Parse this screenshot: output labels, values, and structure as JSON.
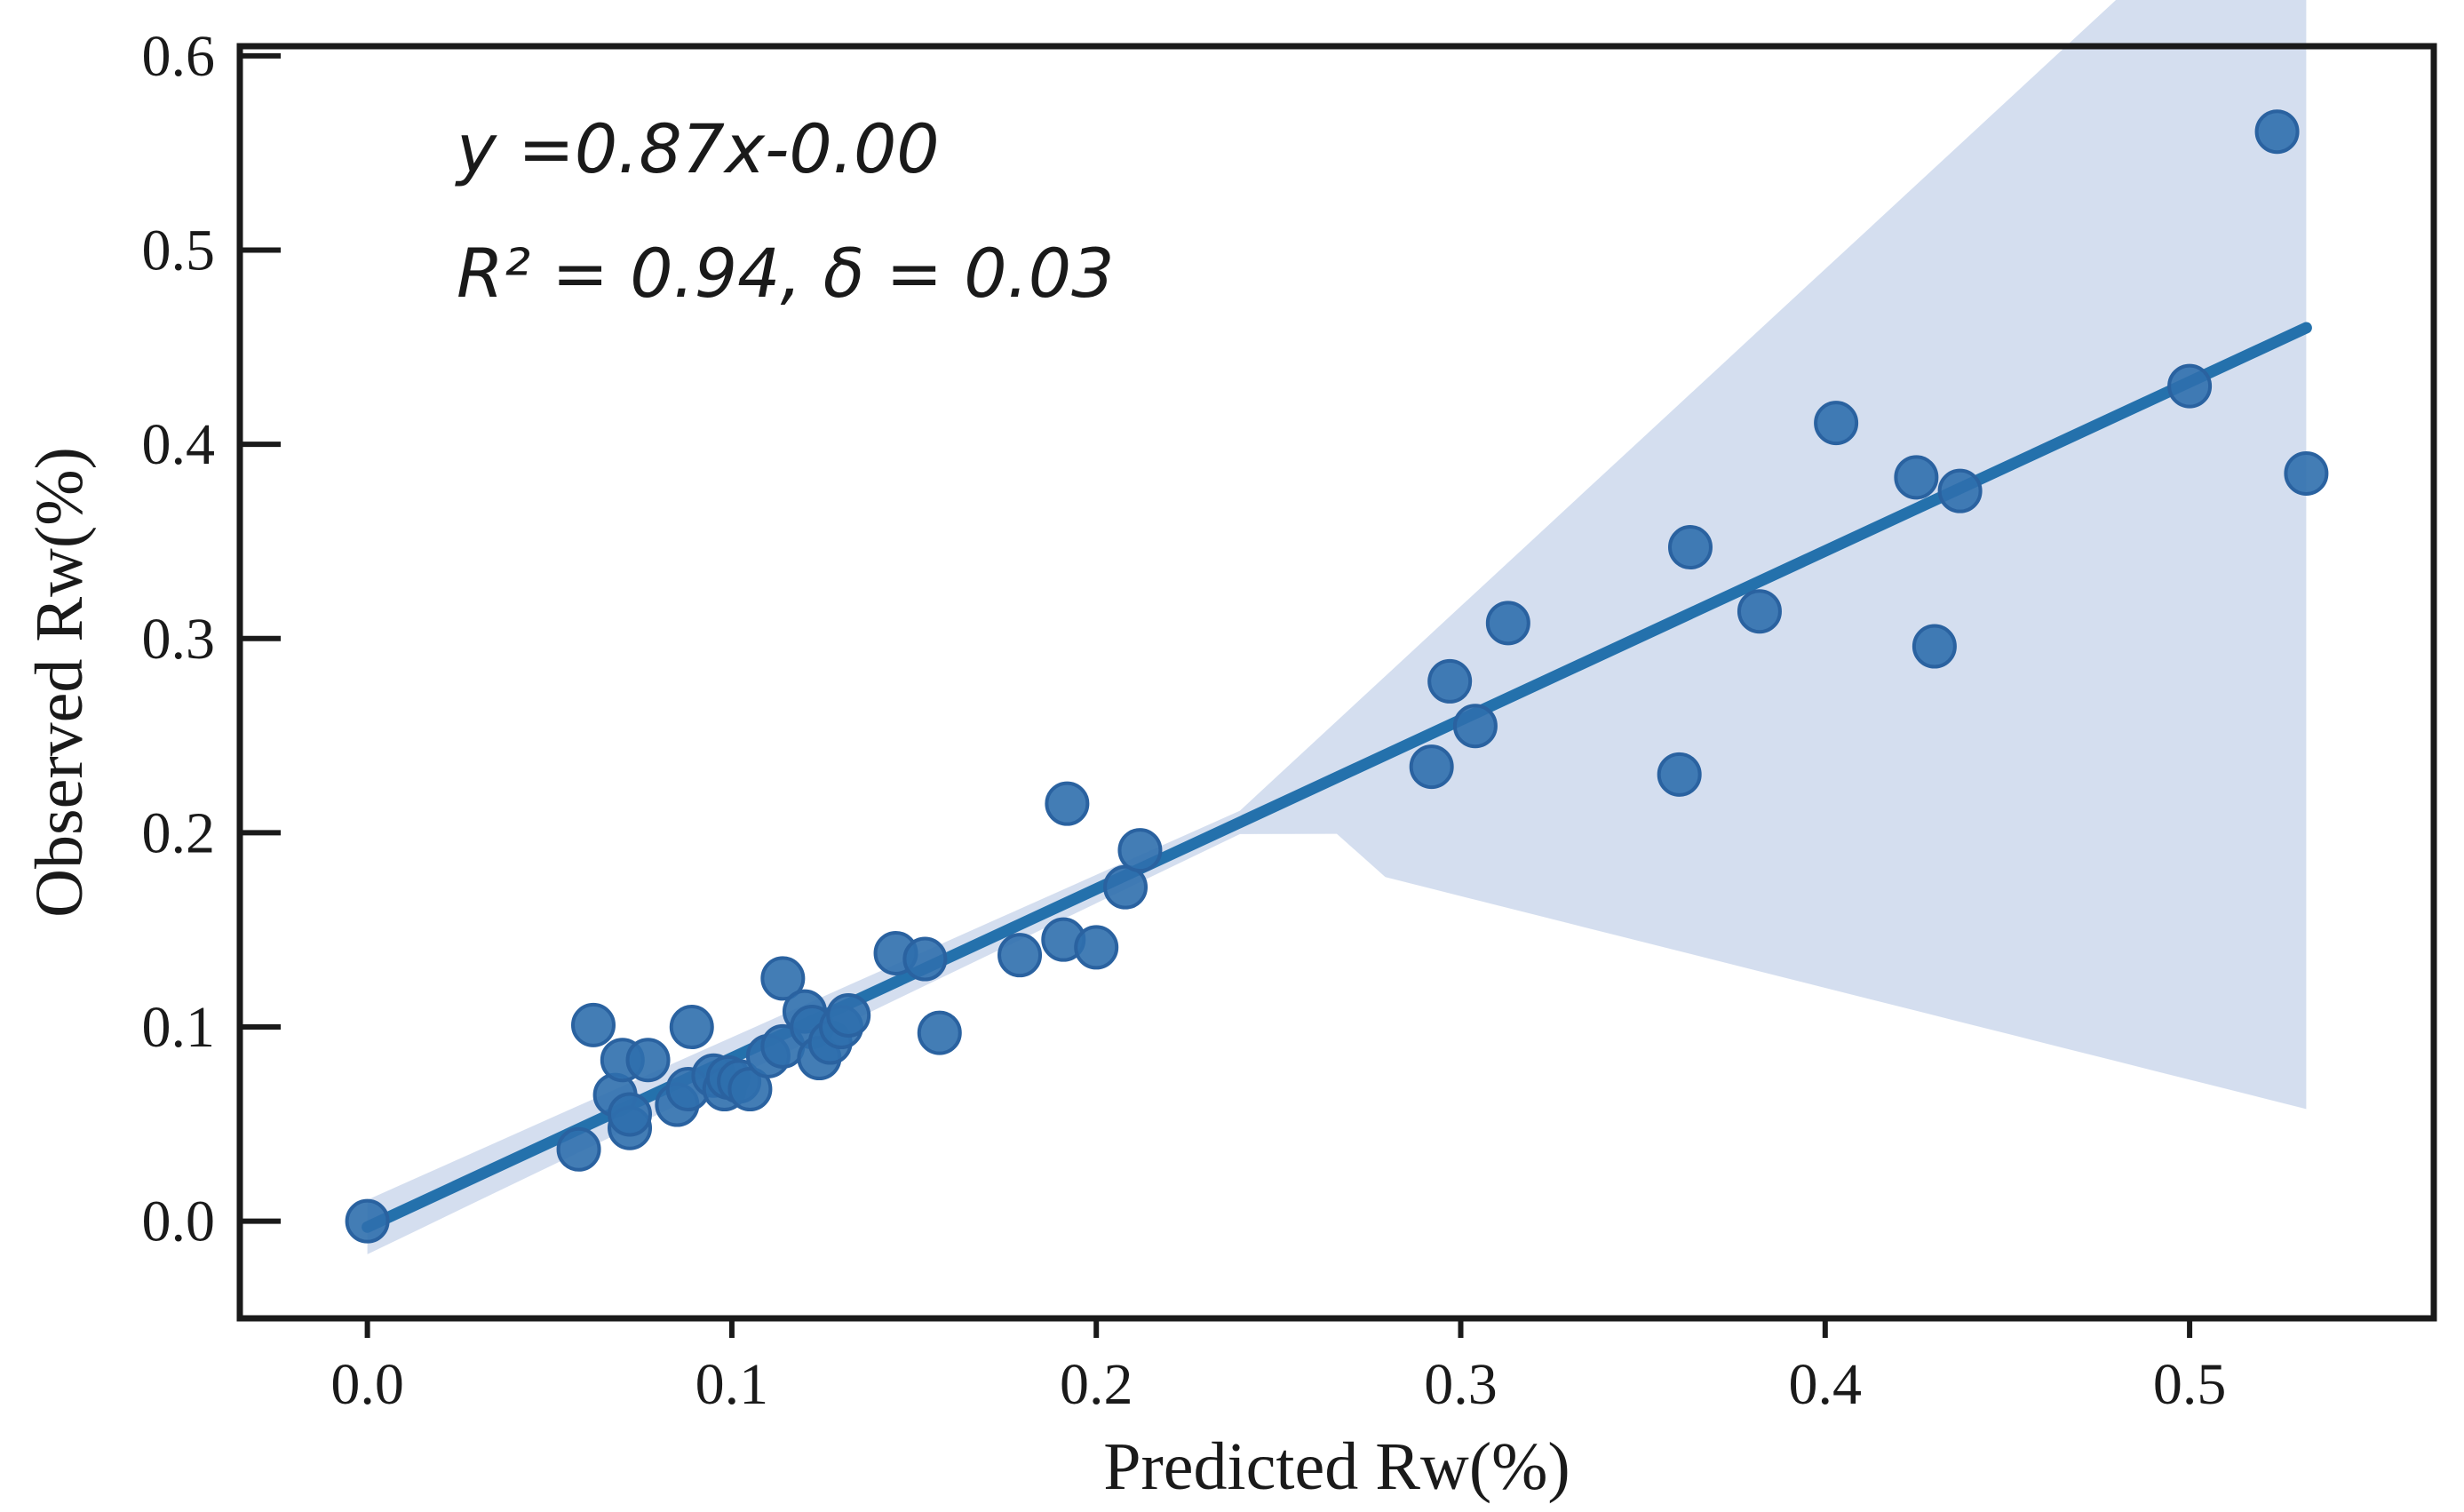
{
  "chart_data": {
    "type": "scatter",
    "title": "",
    "xlabel": "Predicted Rw(%)",
    "ylabel": "Observed Rw(%)",
    "xlim": [
      -0.035,
      0.567
    ],
    "ylim": [
      -0.05,
      0.605
    ],
    "xticks": [
      0.0,
      0.1,
      0.2,
      0.3,
      0.4,
      0.5
    ],
    "yticks": [
      0.0,
      0.1,
      0.2,
      0.3,
      0.4,
      0.5,
      0.6
    ],
    "xtick_labels": [
      "0.0",
      "0.1",
      "0.2",
      "0.3",
      "0.4",
      "0.5"
    ],
    "ytick_labels": [
      "0.0",
      "0.1",
      "0.2",
      "0.3",
      "0.4",
      "0.5",
      "0.6"
    ],
    "grid": false,
    "colors": {
      "point": "#2f6fad",
      "point_edge": "#2a62a0",
      "line": "#2471ac",
      "band": "#c5d3ea",
      "axis": "#1a1a1a"
    },
    "annotations": {
      "equation": "y =0.87x-0.00",
      "stats": "R² = 0.94, δ = 0.03"
    },
    "regression": {
      "slope": 0.87,
      "intercept": -0.0,
      "line_start": [
        0.0,
        -0.003
      ],
      "line_end": [
        0.532,
        0.46
      ],
      "band_start": [
        -0.017,
        0.011
      ],
      "band_end": [
        -0.015,
        0.504
      ]
    },
    "series": [
      {
        "name": "samples",
        "x": [
          0.0,
          0.058,
          0.062,
          0.068,
          0.07,
          0.072,
          0.072,
          0.077,
          0.085,
          0.088,
          0.089,
          0.095,
          0.098,
          0.099,
          0.102,
          0.105,
          0.11,
          0.114,
          0.114,
          0.12,
          0.122,
          0.124,
          0.127,
          0.13,
          0.132,
          0.145,
          0.153,
          0.157,
          0.179,
          0.191,
          0.192,
          0.2,
          0.208,
          0.212,
          0.292,
          0.297,
          0.304,
          0.313,
          0.36,
          0.363,
          0.382,
          0.403,
          0.425,
          0.43,
          0.437,
          0.5,
          0.524,
          0.532
        ],
        "y": [
          0.0,
          0.037,
          0.101,
          0.065,
          0.083,
          0.048,
          0.055,
          0.083,
          0.06,
          0.068,
          0.1,
          0.075,
          0.068,
          0.074,
          0.072,
          0.068,
          0.085,
          0.09,
          0.125,
          0.108,
          0.1,
          0.084,
          0.092,
          0.1,
          0.106,
          0.138,
          0.135,
          0.097,
          0.137,
          0.145,
          0.215,
          0.141,
          0.172,
          0.191,
          0.234,
          0.278,
          0.255,
          0.308,
          0.23,
          0.347,
          0.314,
          0.411,
          0.383,
          0.296,
          0.376,
          0.43,
          0.561,
          0.385
        ]
      }
    ]
  }
}
